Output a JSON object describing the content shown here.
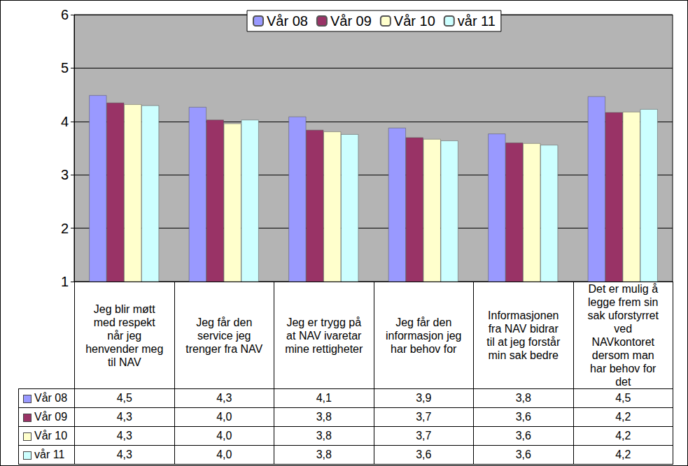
{
  "chart_data": {
    "type": "bar",
    "categories": [
      "Jeg blir møtt med respekt når jeg henvender meg til NAV",
      "Jeg får den service jeg trenger fra NAV",
      "Jeg er trygg på at NAV ivaretar mine rettigheter",
      "Jeg får den informasjon jeg har behov for",
      "Informasjonen fra NAV bidrar til at jeg forstår min sak bedre",
      "Det er mulig å legge frem sin sak uforstyrret ved NAVkontoret dersom man har behov for det"
    ],
    "series": [
      {
        "name": "Vår 08",
        "color": "#9999ff",
        "values": [
          4.49,
          4.27,
          4.09,
          3.88,
          3.77,
          4.47
        ],
        "value_labels": [
          "4,5",
          "4,3",
          "4,1",
          "3,9",
          "3,8",
          "4,5"
        ]
      },
      {
        "name": "Vår 09",
        "color": "#993366",
        "values": [
          4.35,
          4.03,
          3.84,
          3.7,
          3.6,
          4.17
        ],
        "value_labels": [
          "4,3",
          "4,0",
          "3,8",
          "3,7",
          "3,6",
          "4,2"
        ]
      },
      {
        "name": "Vår 10",
        "color": "#ffffcc",
        "values": [
          4.32,
          3.96,
          3.81,
          3.67,
          3.59,
          4.18
        ],
        "value_labels": [
          "4,3",
          "4,0",
          "3,8",
          "3,7",
          "3,6",
          "4,2"
        ]
      },
      {
        "name": "vår 11",
        "color": "#ccffff",
        "values": [
          4.3,
          4.03,
          3.76,
          3.64,
          3.56,
          4.23
        ],
        "value_labels": [
          "4,3",
          "4,0",
          "3,8",
          "3,6",
          "3,6",
          "4,2"
        ]
      }
    ],
    "ylim": [
      1,
      6
    ],
    "yticks": [
      1,
      2,
      3,
      4,
      5,
      6
    ],
    "grid": true,
    "legend": "top"
  }
}
